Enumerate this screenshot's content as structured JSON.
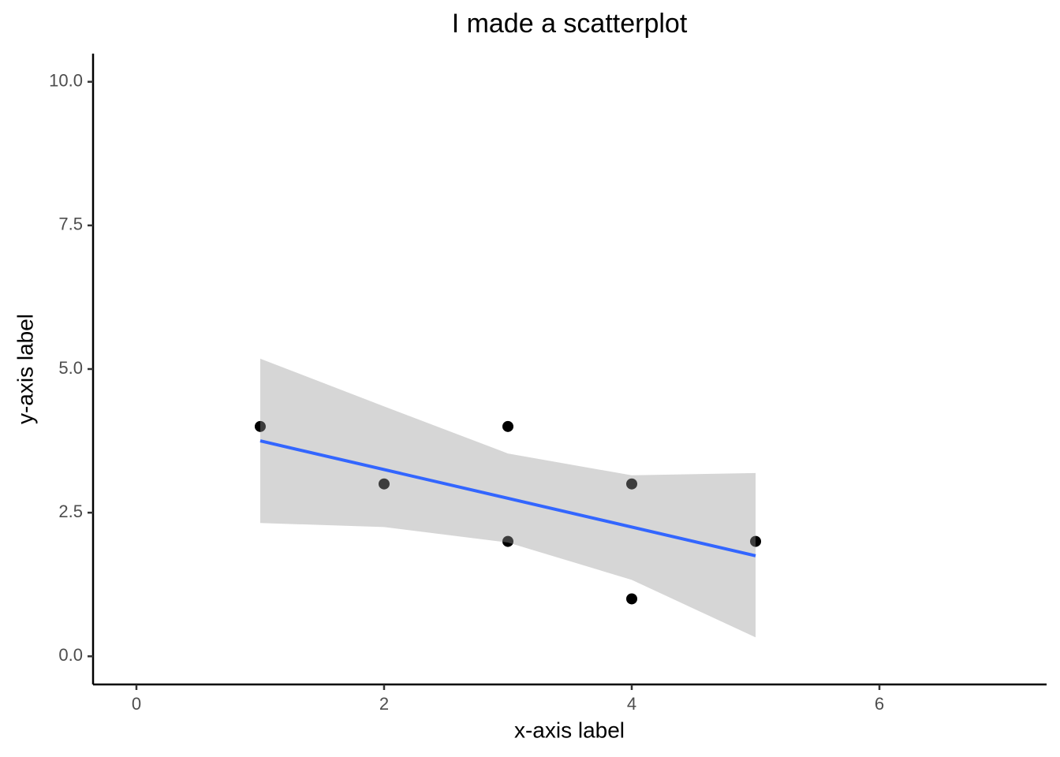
{
  "chart_data": {
    "type": "scatter",
    "title": "I made a scatterplot",
    "x_label": "x-axis label",
    "y_label": "y-axis label",
    "series": [
      {
        "color": "#000000",
        "x": [
          1,
          2,
          3,
          3,
          4,
          4,
          5
        ],
        "values": [
          4,
          3,
          4,
          2,
          3,
          1,
          2
        ]
      }
    ],
    "fit": {
      "color": "#3366ff",
      "x": [
        1,
        5
      ],
      "values": [
        3.75,
        1.75
      ]
    },
    "band": {
      "color": "#999999",
      "x": [
        1,
        2,
        3,
        4,
        5
      ],
      "upper": [
        5.18,
        4.35,
        3.53,
        3.15,
        3.19
      ],
      "lower": [
        2.32,
        2.25,
        1.98,
        1.33,
        0.33
      ]
    },
    "xlim": [
      -0.35,
      7.35
    ],
    "ylim": [
      -0.49,
      10.49
    ],
    "xticks": [
      0,
      2,
      4,
      6
    ],
    "yticks": [
      {
        "value": 0,
        "label": "0.0"
      },
      {
        "value": 2.5,
        "label": "2.5"
      },
      {
        "value": 5,
        "label": "5.0"
      },
      {
        "value": 7.5,
        "label": "7.5"
      },
      {
        "value": 10,
        "label": "10.0"
      }
    ]
  }
}
